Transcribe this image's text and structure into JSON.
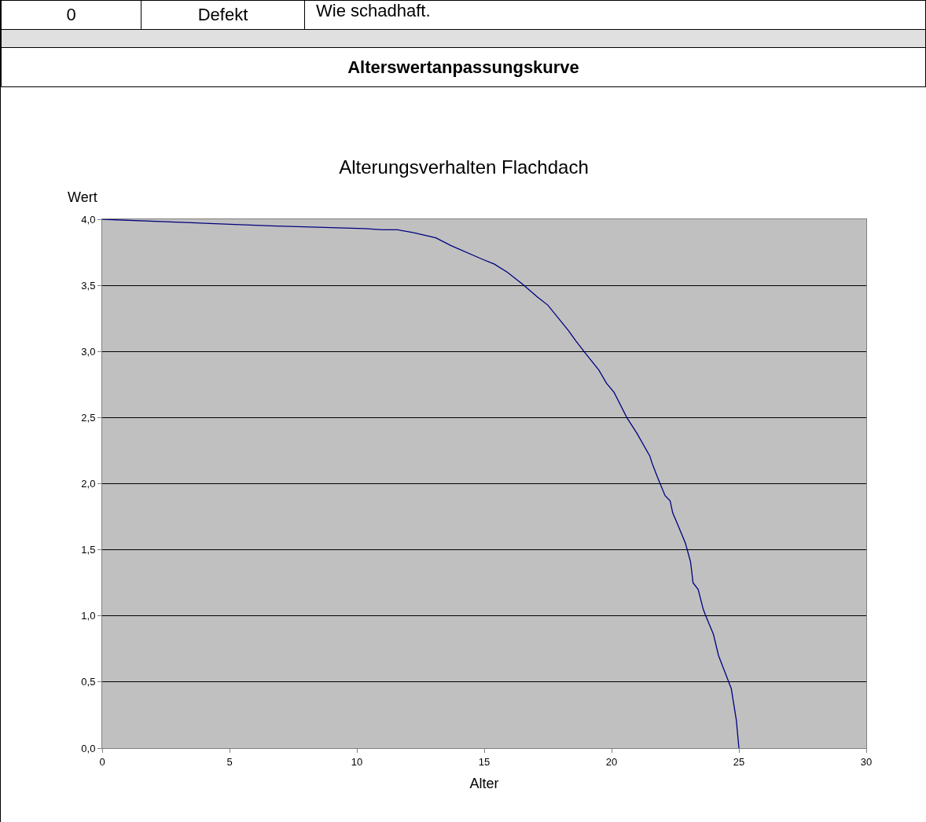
{
  "chart_data": {
    "type": "line",
    "title": "Alterungsverhalten Flachdach",
    "xlabel": "Alter",
    "ylabel": "Wert",
    "annotations": [
      "0",
      "Defekt",
      "Wie schadhaft.",
      "Alterswertanpassungskurve"
    ],
    "x": [
      0,
      6.6,
      10.3,
      11,
      11.6,
      12.2,
      13.1,
      13.7,
      14.9,
      15.4,
      15.9,
      16.5,
      17.1,
      17.5,
      18.3,
      18.6,
      19,
      19.5,
      19.8,
      20.1,
      20.6,
      21,
      21.5,
      21.6,
      21.8,
      22.1,
      22.3,
      22.4,
      22.6,
      22.9,
      23.1,
      23.2,
      23.4,
      23.6,
      23.7,
      24,
      24.2,
      24.4,
      24.7,
      24.9,
      25
    ],
    "series": [
      {
        "color": "#000080",
        "values": [
          4,
          3.95,
          3.93,
          3.92,
          3.92,
          3.9,
          3.86,
          3.8,
          3.7,
          3.66,
          3.6,
          3.51,
          3.41,
          3.35,
          3.16,
          3.08,
          2.98,
          2.86,
          2.76,
          2.69,
          2.5,
          2.38,
          2.21,
          2.15,
          2.05,
          1.91,
          1.87,
          1.78,
          1.69,
          1.55,
          1.41,
          1.25,
          1.2,
          1.05,
          1,
          0.86,
          0.7,
          0.6,
          0.45,
          0.21,
          0
        ]
      }
    ],
    "xlim": [
      0,
      30
    ],
    "xticks": [
      0,
      5,
      10,
      15,
      20,
      25,
      30
    ],
    "ylim": [
      0,
      4
    ],
    "yticks": [
      {
        "value": 0,
        "label": "0,0"
      },
      {
        "value": 0.5,
        "label": "0,5"
      },
      {
        "value": 1,
        "label": "1,0"
      },
      {
        "value": 1.5,
        "label": "1,5"
      },
      {
        "value": 2,
        "label": "2,0"
      },
      {
        "value": 2.5,
        "label": "2,5"
      },
      {
        "value": 3,
        "label": "3,0"
      },
      {
        "value": 3.5,
        "label": "3,5"
      },
      {
        "value": 4,
        "label": "4,0"
      }
    ],
    "grid": "y",
    "marker": "none",
    "line_style": "solid"
  }
}
